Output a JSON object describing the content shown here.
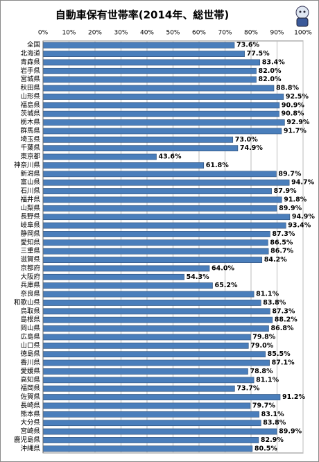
{
  "chart_data": {
    "type": "bar",
    "orientation": "horizontal",
    "title": "自動車保有世帯率(2014年、総世帯)",
    "categories": [
      "全国",
      "北海道",
      "青森県",
      "岩手県",
      "宮城県",
      "秋田県",
      "山形県",
      "福島県",
      "茨城県",
      "栃木県",
      "群馬県",
      "埼玉県",
      "千葉県",
      "東京都",
      "神奈川県",
      "新潟県",
      "富山県",
      "石川県",
      "福井県",
      "山梨県",
      "長野県",
      "岐阜県",
      "静岡県",
      "愛知県",
      "三重県",
      "滋賀県",
      "京都府",
      "大阪府",
      "兵庫県",
      "奈良県",
      "和歌山県",
      "鳥取県",
      "島根県",
      "岡山県",
      "広島県",
      "山口県",
      "徳島県",
      "香川県",
      "愛媛県",
      "高知県",
      "福岡県",
      "佐賀県",
      "長崎県",
      "熊本県",
      "大分県",
      "宮崎県",
      "鹿児島県",
      "沖縄県"
    ],
    "values": [
      73.6,
      77.5,
      83.4,
      82.0,
      82.0,
      88.8,
      92.5,
      90.9,
      90.8,
      92.9,
      91.7,
      73.0,
      74.9,
      43.6,
      61.8,
      89.7,
      94.7,
      87.9,
      91.8,
      89.9,
      94.9,
      93.4,
      87.3,
      86.5,
      86.7,
      84.2,
      64.0,
      54.3,
      65.2,
      81.1,
      83.8,
      87.3,
      88.2,
      86.8,
      79.8,
      79.0,
      85.5,
      87.1,
      78.8,
      81.1,
      73.7,
      91.2,
      79.7,
      83.1,
      83.8,
      89.9,
      82.9,
      80.5
    ],
    "value_labels": [
      "73.6%",
      "77.5%",
      "83.4%",
      "82.0%",
      "82.0%",
      "88.8%",
      "92.5%",
      "90.9%",
      "90.8%",
      "92.9%",
      "91.7%",
      "73.0%",
      "74.9%",
      "43.6%",
      "61.8%",
      "89.7%",
      "94.7%",
      "87.9%",
      "91.8%",
      "89.9%",
      "94.9%",
      "93.4%",
      "87.3%",
      "86.5%",
      "86.7%",
      "84.2%",
      "64.0%",
      "54.3%",
      "65.2%",
      "81.1%",
      "83.8%",
      "87.3%",
      "88.2%",
      "86.8%",
      "79.8%",
      "79.0%",
      "85.5%",
      "87.1%",
      "78.8%",
      "81.1%",
      "73.7%",
      "91.2%",
      "79.7%",
      "83.1%",
      "83.8%",
      "89.9%",
      "82.9%",
      "80.5%"
    ],
    "color": "#4a7ebb",
    "xlim": [
      0,
      100
    ],
    "xticks": [
      {
        "value": 0,
        "label": "0%"
      },
      {
        "value": 10,
        "label": "10%"
      },
      {
        "value": 20,
        "label": "20%"
      },
      {
        "value": 30,
        "label": "30%"
      },
      {
        "value": 40,
        "label": "40%"
      },
      {
        "value": 50,
        "label": "50%"
      },
      {
        "value": 60,
        "label": "60%"
      },
      {
        "value": 70,
        "label": "70%"
      },
      {
        "value": 80,
        "label": "80%"
      },
      {
        "value": 90,
        "label": "90%"
      },
      {
        "value": 100,
        "label": "100%"
      }
    ],
    "grid": true
  }
}
